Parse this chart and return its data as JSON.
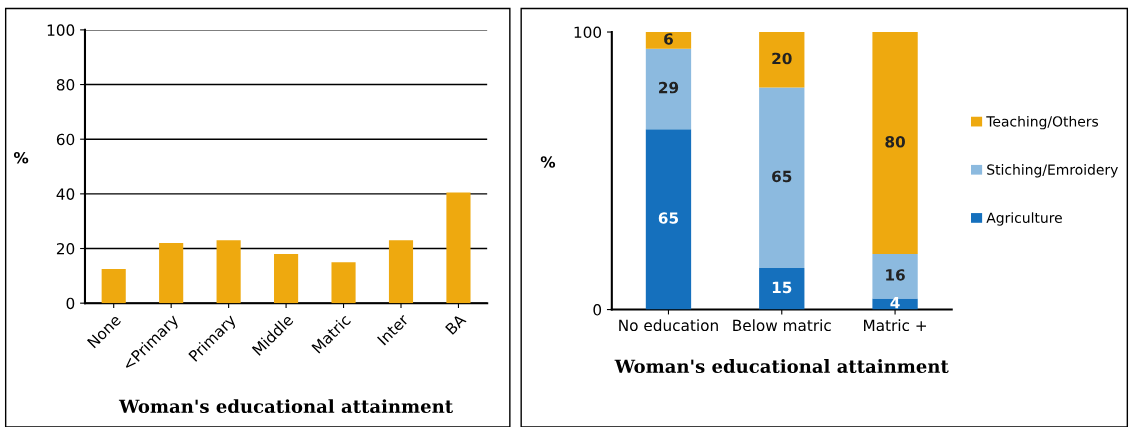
{
  "chart_data": [
    {
      "type": "bar",
      "xlabel": "Woman's educational attainment",
      "ylabel": "%",
      "categories": [
        "None",
        "<Primary",
        "Primary",
        "Middle",
        "Matric",
        "Inter",
        "BA"
      ],
      "values": [
        12.5,
        22,
        23,
        18,
        15,
        23,
        40.5
      ],
      "color": "#eea90f",
      "ylim": [
        0,
        100
      ],
      "yticks": [
        0,
        20,
        40,
        60,
        80,
        100
      ],
      "grid": "y"
    },
    {
      "type": "bar",
      "stacked": true,
      "xlabel": "Woman's educational attainment",
      "ylabel": "%",
      "categories": [
        "No education",
        "Below matric",
        "Matric +"
      ],
      "series": [
        {
          "name": "Agriculture",
          "color": "#1570bd",
          "values": [
            65,
            15,
            4
          ]
        },
        {
          "name": "Stiching/Emroidery",
          "color": "#8cbadf",
          "values": [
            29,
            65,
            16
          ]
        },
        {
          "name": "Teaching/Others",
          "color": "#eea90f",
          "values": [
            6,
            20,
            80
          ]
        }
      ],
      "ylim": [
        0,
        100
      ],
      "yticks": [
        0,
        100
      ],
      "data_labels": true,
      "legend": "right"
    }
  ]
}
